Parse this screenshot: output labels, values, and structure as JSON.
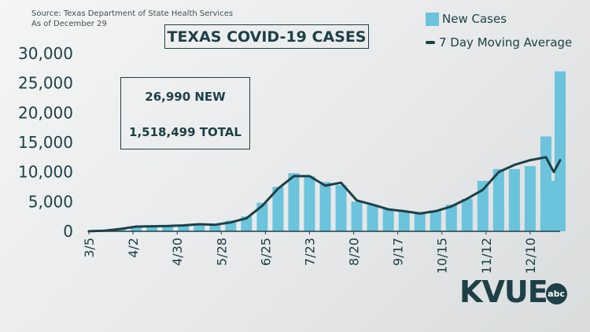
{
  "source_line1": "Source: Texas Department of State Health Services",
  "source_line2": "As of December 29",
  "stats": {
    "new": "26,990 NEW",
    "total": "1,518,499 TOTAL"
  },
  "brand": {
    "name": "KVUE",
    "badge": "abc"
  },
  "colors": {
    "bars": "#6bc3dc",
    "line": "#1d4047",
    "text": "#1d4047"
  },
  "chart_data": {
    "type": "bar",
    "title": "TEXAS COVID-19 CASES",
    "xlabel": "",
    "ylabel": "",
    "x_start": "2020-03-05",
    "x_end": "2020-12-29",
    "x_ticks": [
      "3/5",
      "4/2",
      "4/30",
      "5/28",
      "6/25",
      "7/23",
      "8/20",
      "9/17",
      "10/15",
      "11/12",
      "12/10"
    ],
    "y_ticks": [
      "0",
      "5,000",
      "10,000",
      "15,000",
      "20,000",
      "25,000",
      "30,000"
    ],
    "ylim": [
      0,
      30000
    ],
    "legend_position": "top-right",
    "series": [
      {
        "name": "New Cases",
        "type": "bar",
        "x": [
          "3/5",
          "3/15",
          "3/25",
          "4/4",
          "4/14",
          "4/24",
          "5/4",
          "5/14",
          "5/24",
          "6/3",
          "6/13",
          "6/23",
          "7/3",
          "7/13",
          "7/23",
          "8/2",
          "8/12",
          "8/22",
          "9/1",
          "9/11",
          "9/21",
          "10/1",
          "10/11",
          "10/21",
          "10/31",
          "11/10",
          "11/20",
          "11/30",
          "12/10",
          "12/20",
          "12/25",
          "12/29"
        ],
        "values": [
          10,
          100,
          500,
          800,
          900,
          1000,
          1100,
          1300,
          1200,
          1800,
          2500,
          4800,
          7500,
          9800,
          9300,
          8300,
          7800,
          5000,
          4500,
          3800,
          3300,
          3000,
          3500,
          4500,
          5500,
          8500,
          10500,
          10500,
          11000,
          16000,
          8500,
          26990
        ]
      },
      {
        "name": "7 Day Moving Average",
        "type": "line",
        "x": [
          "3/5",
          "3/15",
          "3/25",
          "4/4",
          "4/14",
          "4/24",
          "5/4",
          "5/14",
          "5/24",
          "6/3",
          "6/13",
          "6/23",
          "7/3",
          "7/13",
          "7/23",
          "8/2",
          "8/12",
          "8/22",
          "9/1",
          "9/11",
          "9/21",
          "10/1",
          "10/11",
          "10/21",
          "10/31",
          "11/10",
          "11/20",
          "11/30",
          "12/10",
          "12/20",
          "12/25",
          "12/29"
        ],
        "values": [
          10,
          100,
          400,
          800,
          850,
          900,
          1000,
          1200,
          1100,
          1500,
          2200,
          4300,
          7200,
          9300,
          9300,
          7700,
          8200,
          5200,
          4500,
          3700,
          3400,
          3000,
          3400,
          4200,
          5500,
          7000,
          10000,
          11200,
          12000,
          12500,
          10000,
          12000
        ]
      }
    ]
  }
}
